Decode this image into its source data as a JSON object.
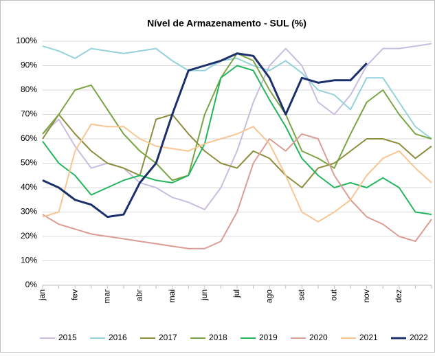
{
  "chart_data": {
    "type": "line",
    "title": "Nível de Armazenamento - SUL (%)",
    "categories": [
      "jan",
      null,
      "fev",
      null,
      "mar",
      null,
      "abr",
      null,
      "mai",
      null,
      "jun",
      null,
      "jul",
      null,
      "ago",
      null,
      "set",
      null,
      "out",
      null,
      "nov",
      null,
      "dez",
      null,
      null
    ],
    "ylim": [
      0,
      100
    ],
    "yticks": [
      {
        "value": 0,
        "label": "0%"
      },
      {
        "value": 10,
        "label": "10%"
      },
      {
        "value": 20,
        "label": "20%"
      },
      {
        "value": 30,
        "label": "30%"
      },
      {
        "value": 40,
        "label": "40%"
      },
      {
        "value": 50,
        "label": "50%"
      },
      {
        "value": 60,
        "label": "60%"
      },
      {
        "value": 70,
        "label": "70%"
      },
      {
        "value": 80,
        "label": "80%"
      },
      {
        "value": 90,
        "label": "90%"
      },
      {
        "value": 100,
        "label": "100%"
      }
    ],
    "grid": true,
    "legend": "bottom",
    "series": [
      {
        "name": "2015",
        "color": "#c8bde0",
        "values": [
          62,
          68,
          57,
          48,
          50,
          48,
          42,
          40,
          36,
          34,
          31,
          40,
          55,
          75,
          90,
          97,
          90,
          75,
          70,
          78,
          90,
          97,
          97,
          98,
          99
        ]
      },
      {
        "name": "2016",
        "color": "#93d2da",
        "values": [
          98,
          96,
          93,
          97,
          96,
          95,
          96,
          97,
          92,
          88,
          88,
          92,
          93,
          90,
          88,
          92,
          87,
          80,
          78,
          72,
          85,
          85,
          75,
          65,
          60
        ]
      },
      {
        "name": "2017",
        "color": "#8c8c3c",
        "values": [
          60,
          70,
          62,
          55,
          50,
          48,
          45,
          68,
          70,
          62,
          55,
          50,
          48,
          55,
          52,
          45,
          40,
          48,
          50,
          55,
          60,
          60,
          58,
          52,
          57
        ]
      },
      {
        "name": "2018",
        "color": "#78a442",
        "values": [
          62,
          70,
          80,
          82,
          72,
          62,
          55,
          50,
          43,
          45,
          70,
          85,
          95,
          92,
          80,
          70,
          55,
          52,
          48,
          62,
          75,
          80,
          70,
          62,
          60
        ]
      },
      {
        "name": "2019",
        "color": "#22b55c",
        "values": [
          59,
          50,
          45,
          37,
          40,
          43,
          45,
          43,
          42,
          45,
          58,
          85,
          90,
          88,
          76,
          65,
          52,
          45,
          40,
          42,
          40,
          44,
          40,
          30,
          29
        ]
      },
      {
        "name": "2020",
        "color": "#dc9c93",
        "values": [
          29,
          25,
          23,
          21,
          20,
          19,
          18,
          17,
          16,
          15,
          15,
          18,
          30,
          50,
          60,
          55,
          62,
          60,
          45,
          35,
          28,
          25,
          20,
          18,
          27
        ]
      },
      {
        "name": "2021",
        "color": "#f8c590",
        "values": [
          28,
          30,
          55,
          66,
          65,
          65,
          60,
          57,
          56,
          55,
          58,
          60,
          62,
          65,
          58,
          45,
          30,
          26,
          30,
          35,
          45,
          52,
          55,
          48,
          42
        ]
      },
      {
        "name": "2022",
        "color": "#1b2f6b",
        "values": [
          43,
          40,
          35,
          33,
          28,
          29,
          42,
          50,
          70,
          88,
          90,
          92,
          95,
          94,
          85,
          70,
          85,
          83,
          84,
          84,
          91,
          null,
          null,
          null,
          null
        ]
      }
    ]
  }
}
